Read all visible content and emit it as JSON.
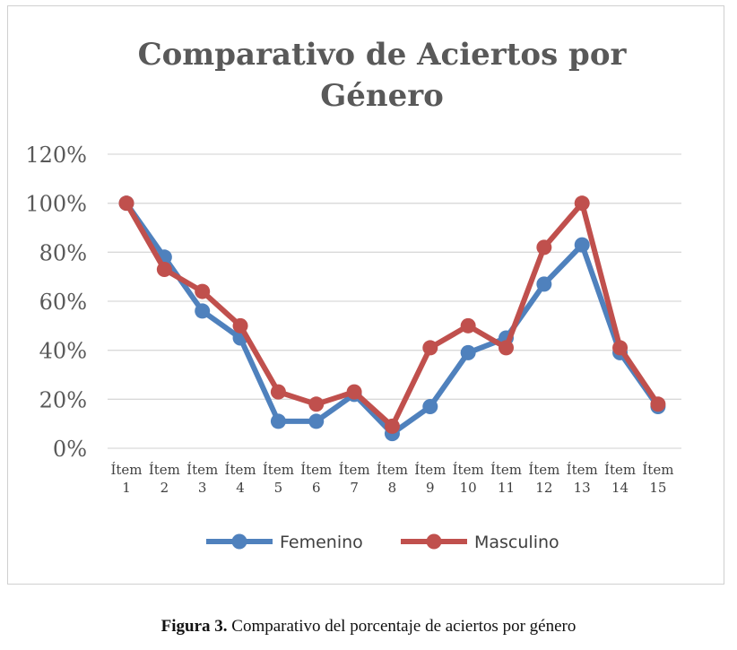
{
  "chart_data": {
    "type": "line",
    "title": "Comparativo de Aciertos por Género",
    "title_lines": [
      "Comparativo de Aciertos por",
      "Género"
    ],
    "categories": [
      [
        "Ítem",
        "1"
      ],
      [
        "Ítem",
        "2"
      ],
      [
        "Ítem",
        "3"
      ],
      [
        "Ítem",
        "4"
      ],
      [
        "Ítem",
        "5"
      ],
      [
        "Ítem",
        "6"
      ],
      [
        "Ítem",
        "7"
      ],
      [
        "Ítem",
        "8"
      ],
      [
        "Ítem",
        "9"
      ],
      [
        "Ítem",
        "10"
      ],
      [
        "Ítem",
        "11"
      ],
      [
        "Ítem",
        "12"
      ],
      [
        "Ítem",
        "13"
      ],
      [
        "Ítem",
        "14"
      ],
      [
        "Ítem",
        "15"
      ]
    ],
    "ylim": [
      0,
      1.2
    ],
    "yticks": [
      0,
      0.2,
      0.4,
      0.6,
      0.8,
      1.0,
      1.2
    ],
    "ytick_labels": [
      "0%",
      "20%",
      "40%",
      "60%",
      "80%",
      "100%",
      "120%"
    ],
    "grid": true,
    "legend_position": "bottom",
    "series": [
      {
        "name": "Femenino",
        "color": "#4f81bd",
        "values": [
          1.0,
          0.78,
          0.56,
          0.45,
          0.11,
          0.11,
          0.22,
          0.06,
          0.17,
          0.39,
          0.45,
          0.67,
          0.83,
          0.39,
          0.17
        ]
      },
      {
        "name": "Masculino",
        "color": "#c0504d",
        "values": [
          1.0,
          0.73,
          0.64,
          0.5,
          0.23,
          0.18,
          0.23,
          0.09,
          0.41,
          0.5,
          0.41,
          0.82,
          1.0,
          0.41,
          0.18
        ]
      }
    ]
  },
  "caption": {
    "label": "Figura 3.",
    "text": " Comparativo del porcentaje de aciertos por género"
  }
}
